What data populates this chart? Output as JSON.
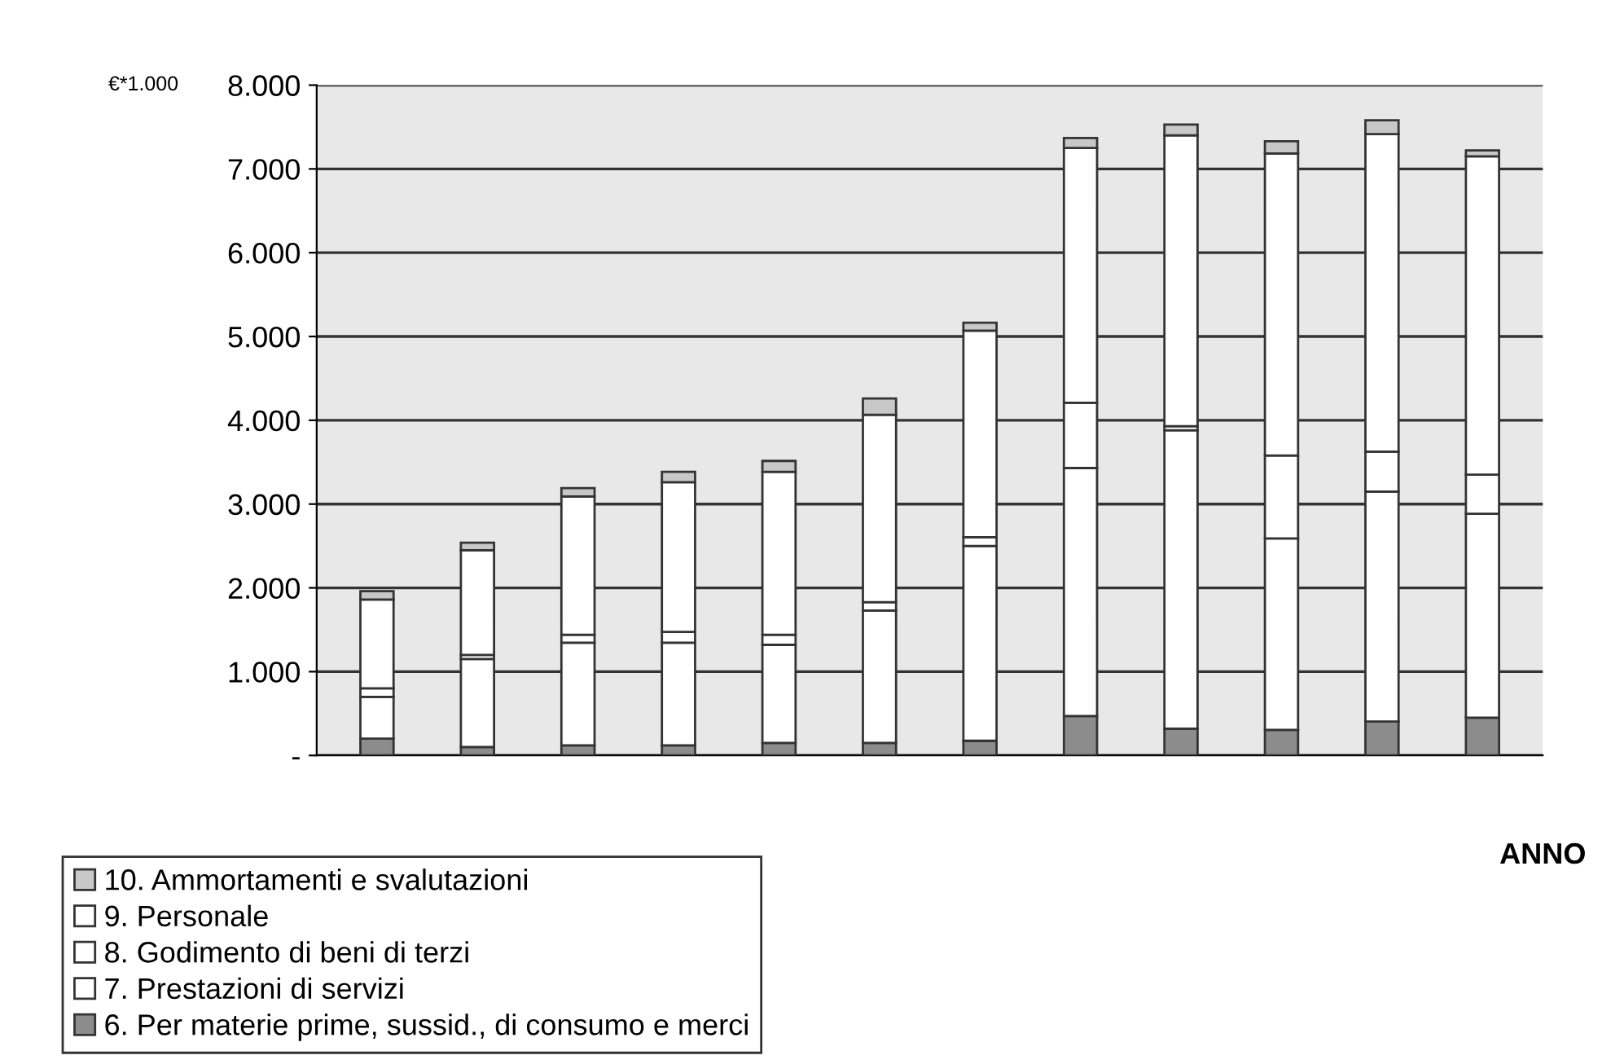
{
  "chart_data": {
    "type": "bar",
    "stacked": true,
    "ylabel": "€*1.000",
    "xlabel": "ANNO",
    "categories": [
      null,
      null,
      null,
      null,
      null,
      null,
      null,
      null,
      null,
      null,
      null,
      null
    ],
    "series": [
      {
        "name": "6. Per materie prime, sussid., di consumo e merci",
        "color": "#8c8c8c",
        "values": [
          200,
          100,
          120,
          120,
          150,
          150,
          175,
          470,
          320,
          305,
          405,
          450
        ]
      },
      {
        "name": "7. Prestazioni di servizi",
        "color": "#ffffff",
        "values": [
          500,
          1050,
          1225,
          1225,
          1170,
          1580,
          2325,
          2960,
          3560,
          2285,
          2745,
          2435
        ]
      },
      {
        "name": "8. Godimento di beni di terzi",
        "color": "#ffffff",
        "values": [
          100,
          50,
          95,
          130,
          120,
          100,
          105,
          780,
          50,
          990,
          475,
          465
        ]
      },
      {
        "name": "9. Personale",
        "color": "#ffffff",
        "values": [
          1060,
          1250,
          1650,
          1785,
          1945,
          2235,
          2465,
          3040,
          3470,
          3605,
          3790,
          3800
        ]
      },
      {
        "name": "10. Ammortamenti e svalutazioni",
        "color": "#c8c8c8",
        "values": [
          100,
          90,
          100,
          125,
          130,
          195,
          95,
          120,
          130,
          145,
          165,
          70
        ]
      }
    ],
    "ylim": [
      0,
      8000
    ],
    "yticks": [
      {
        "value": 0,
        "label": "-"
      },
      {
        "value": 1000,
        "label": "1.000"
      },
      {
        "value": 2000,
        "label": "2.000"
      },
      {
        "value": 3000,
        "label": "3.000"
      },
      {
        "value": 4000,
        "label": "4.000"
      },
      {
        "value": 5000,
        "label": "5.000"
      },
      {
        "value": 6000,
        "label": "6.000"
      },
      {
        "value": 7000,
        "label": "7.000"
      },
      {
        "value": 8000,
        "label": "8.000"
      }
    ],
    "grid": "y",
    "legend": "bottom left"
  }
}
